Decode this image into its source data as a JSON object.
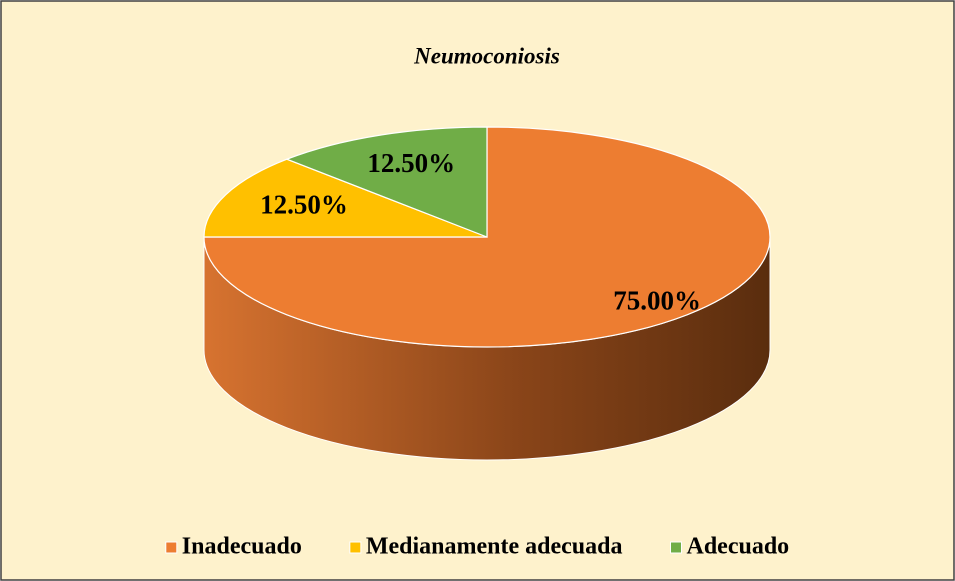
{
  "chart_data": {
    "type": "pie",
    "title": "Neumoconiosis",
    "categories": [
      "Inadecuado",
      "Medianamente adecuada",
      "Adecuado"
    ],
    "values": [
      75,
      12.5,
      12.5
    ],
    "value_labels": [
      "75.00%",
      "12.50%",
      "12.50%"
    ],
    "colors": [
      "#ED7D31",
      "#FFC000",
      "#70AD47"
    ],
    "legend": "bottom"
  }
}
